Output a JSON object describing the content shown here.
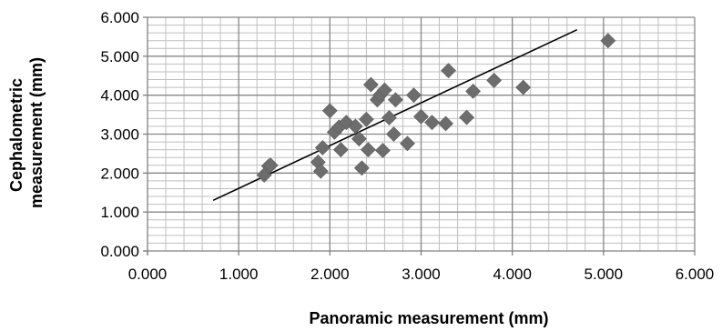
{
  "chart_data": {
    "type": "scatter",
    "xlabel": "Panoramic measurement (mm)",
    "ylabel_lines": [
      "Cephalometric",
      "measurement (mm)"
    ],
    "xlim": [
      0,
      6
    ],
    "ylim": [
      0,
      6
    ],
    "x_ticks": [
      "0.000",
      "1.000",
      "2.000",
      "3.000",
      "4.000",
      "5.000",
      "6.000"
    ],
    "y_ticks": [
      "0.000",
      "1.000",
      "2.000",
      "3.000",
      "4.000",
      "5.000",
      "6.000"
    ],
    "minor_grid_step": 0.2,
    "grid": true,
    "marker": "diamond",
    "marker_color": "#6d6d6d",
    "trendline": {
      "x": [
        0.72,
        4.71
      ],
      "y": [
        1.3,
        5.68
      ]
    },
    "series": [
      {
        "points": [
          [
            1.28,
            1.95
          ],
          [
            1.33,
            2.18
          ],
          [
            1.35,
            2.2
          ],
          [
            1.87,
            2.28
          ],
          [
            1.9,
            2.05
          ],
          [
            1.92,
            2.65
          ],
          [
            2.0,
            3.6
          ],
          [
            2.05,
            3.05
          ],
          [
            2.1,
            3.18
          ],
          [
            2.12,
            2.6
          ],
          [
            2.18,
            3.3
          ],
          [
            2.28,
            3.2
          ],
          [
            2.32,
            2.88
          ],
          [
            2.35,
            2.13
          ],
          [
            2.4,
            3.38
          ],
          [
            2.42,
            2.6
          ],
          [
            2.45,
            4.27
          ],
          [
            2.52,
            3.88
          ],
          [
            2.55,
            4.0
          ],
          [
            2.58,
            2.58
          ],
          [
            2.6,
            4.13
          ],
          [
            2.65,
            3.42
          ],
          [
            2.7,
            3.0
          ],
          [
            2.72,
            3.88
          ],
          [
            2.85,
            2.76
          ],
          [
            2.92,
            4.0
          ],
          [
            3.0,
            3.45
          ],
          [
            3.12,
            3.3
          ],
          [
            3.27,
            3.27
          ],
          [
            3.3,
            4.63
          ],
          [
            3.5,
            3.43
          ],
          [
            3.57,
            4.1
          ],
          [
            3.8,
            4.38
          ],
          [
            4.12,
            4.2
          ],
          [
            5.05,
            5.4
          ]
        ]
      }
    ]
  }
}
